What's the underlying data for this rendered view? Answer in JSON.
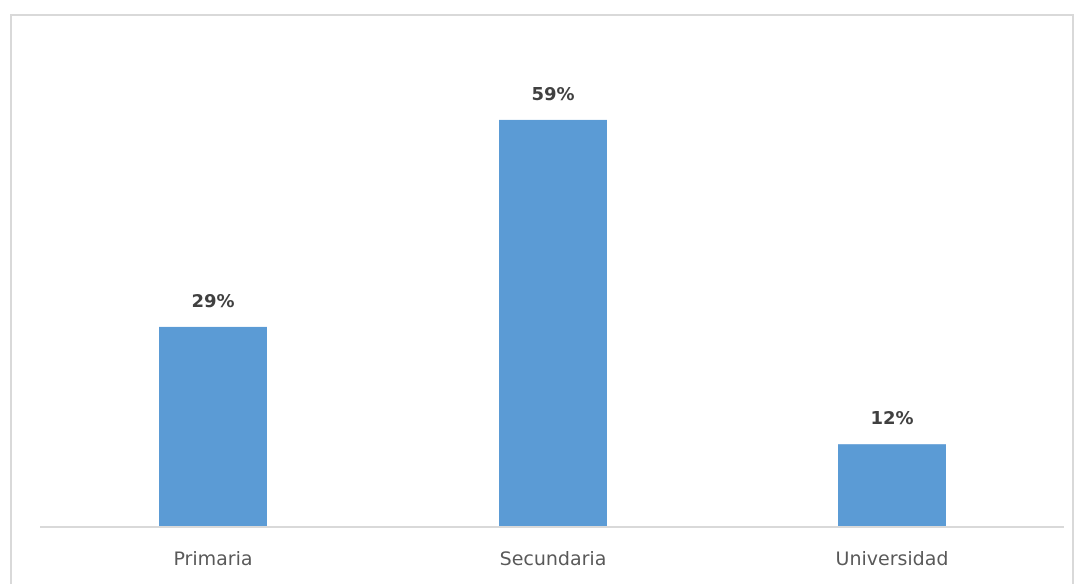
{
  "chart_data": {
    "type": "bar",
    "categories": [
      "Primaria",
      "Secundaria",
      "Universidad"
    ],
    "values": [
      29,
      59,
      12
    ],
    "data_labels": [
      "29%",
      "59%",
      "12%"
    ],
    "unit": "%",
    "title": "",
    "xlabel": "",
    "ylabel": "",
    "ylim": [
      0,
      65
    ],
    "grid": false,
    "legend": "none",
    "bar_color": "#5b9bd5",
    "axis_color": "#d9d9d9",
    "label_color": "#404040",
    "category_color": "#595959"
  }
}
